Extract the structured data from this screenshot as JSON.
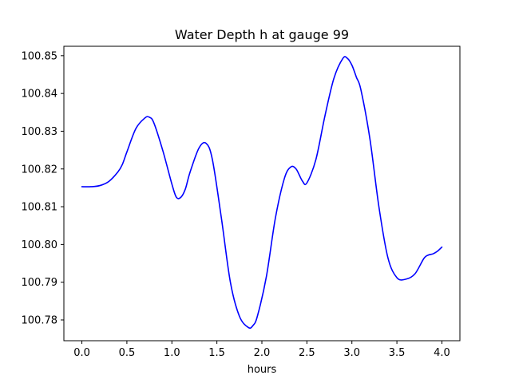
{
  "chart_data": {
    "type": "line",
    "title": "Water Depth h at gauge 99",
    "xlabel": "hours",
    "ylabel": "",
    "xlim": [
      -0.2,
      4.2
    ],
    "ylim": [
      100.7745,
      100.8525
    ],
    "xticks": [
      0.0,
      0.5,
      1.0,
      1.5,
      2.0,
      2.5,
      3.0,
      3.5,
      4.0
    ],
    "xtick_labels": [
      "0.0",
      "0.5",
      "1.0",
      "1.5",
      "2.0",
      "2.5",
      "3.0",
      "3.5",
      "4.0"
    ],
    "yticks": [
      100.78,
      100.79,
      100.8,
      100.81,
      100.82,
      100.83,
      100.84,
      100.85
    ],
    "ytick_labels": [
      "100.78",
      "100.79",
      "100.80",
      "100.81",
      "100.82",
      "100.83",
      "100.84",
      "100.85"
    ],
    "grid": false,
    "series": [
      {
        "name": "",
        "color": "#0000ff",
        "x": [
          0.0,
          0.1,
          0.2,
          0.3,
          0.4,
          0.45,
          0.5,
          0.6,
          0.7,
          0.75,
          0.8,
          0.9,
          1.0,
          1.05,
          1.1,
          1.15,
          1.2,
          1.3,
          1.38,
          1.45,
          1.55,
          1.65,
          1.75,
          1.85,
          1.9,
          1.95,
          2.05,
          2.15,
          2.25,
          2.32,
          2.38,
          2.45,
          2.5,
          2.6,
          2.7,
          2.8,
          2.9,
          2.95,
          3.0,
          3.05,
          3.1,
          3.2,
          3.3,
          3.4,
          3.5,
          3.6,
          3.7,
          3.8,
          3.85,
          3.9,
          3.95,
          4.0
        ],
        "y": [
          100.8153,
          100.8153,
          100.8156,
          100.8167,
          100.8192,
          100.8212,
          100.8245,
          100.8307,
          100.8335,
          100.8337,
          100.8322,
          100.8248,
          100.816,
          100.8125,
          100.8125,
          100.8147,
          100.819,
          100.8255,
          100.8268,
          100.8225,
          100.807,
          100.79,
          100.781,
          100.778,
          100.7785,
          100.781,
          100.7915,
          100.807,
          100.8175,
          100.8205,
          100.82,
          100.8168,
          100.8163,
          100.8225,
          100.834,
          100.844,
          100.8493,
          100.8493,
          100.8475,
          100.8443,
          100.841,
          100.828,
          100.81,
          100.7965,
          100.7912,
          100.7908,
          100.7922,
          100.7963,
          100.7972,
          100.7975,
          100.7982,
          100.7993
        ]
      }
    ]
  }
}
